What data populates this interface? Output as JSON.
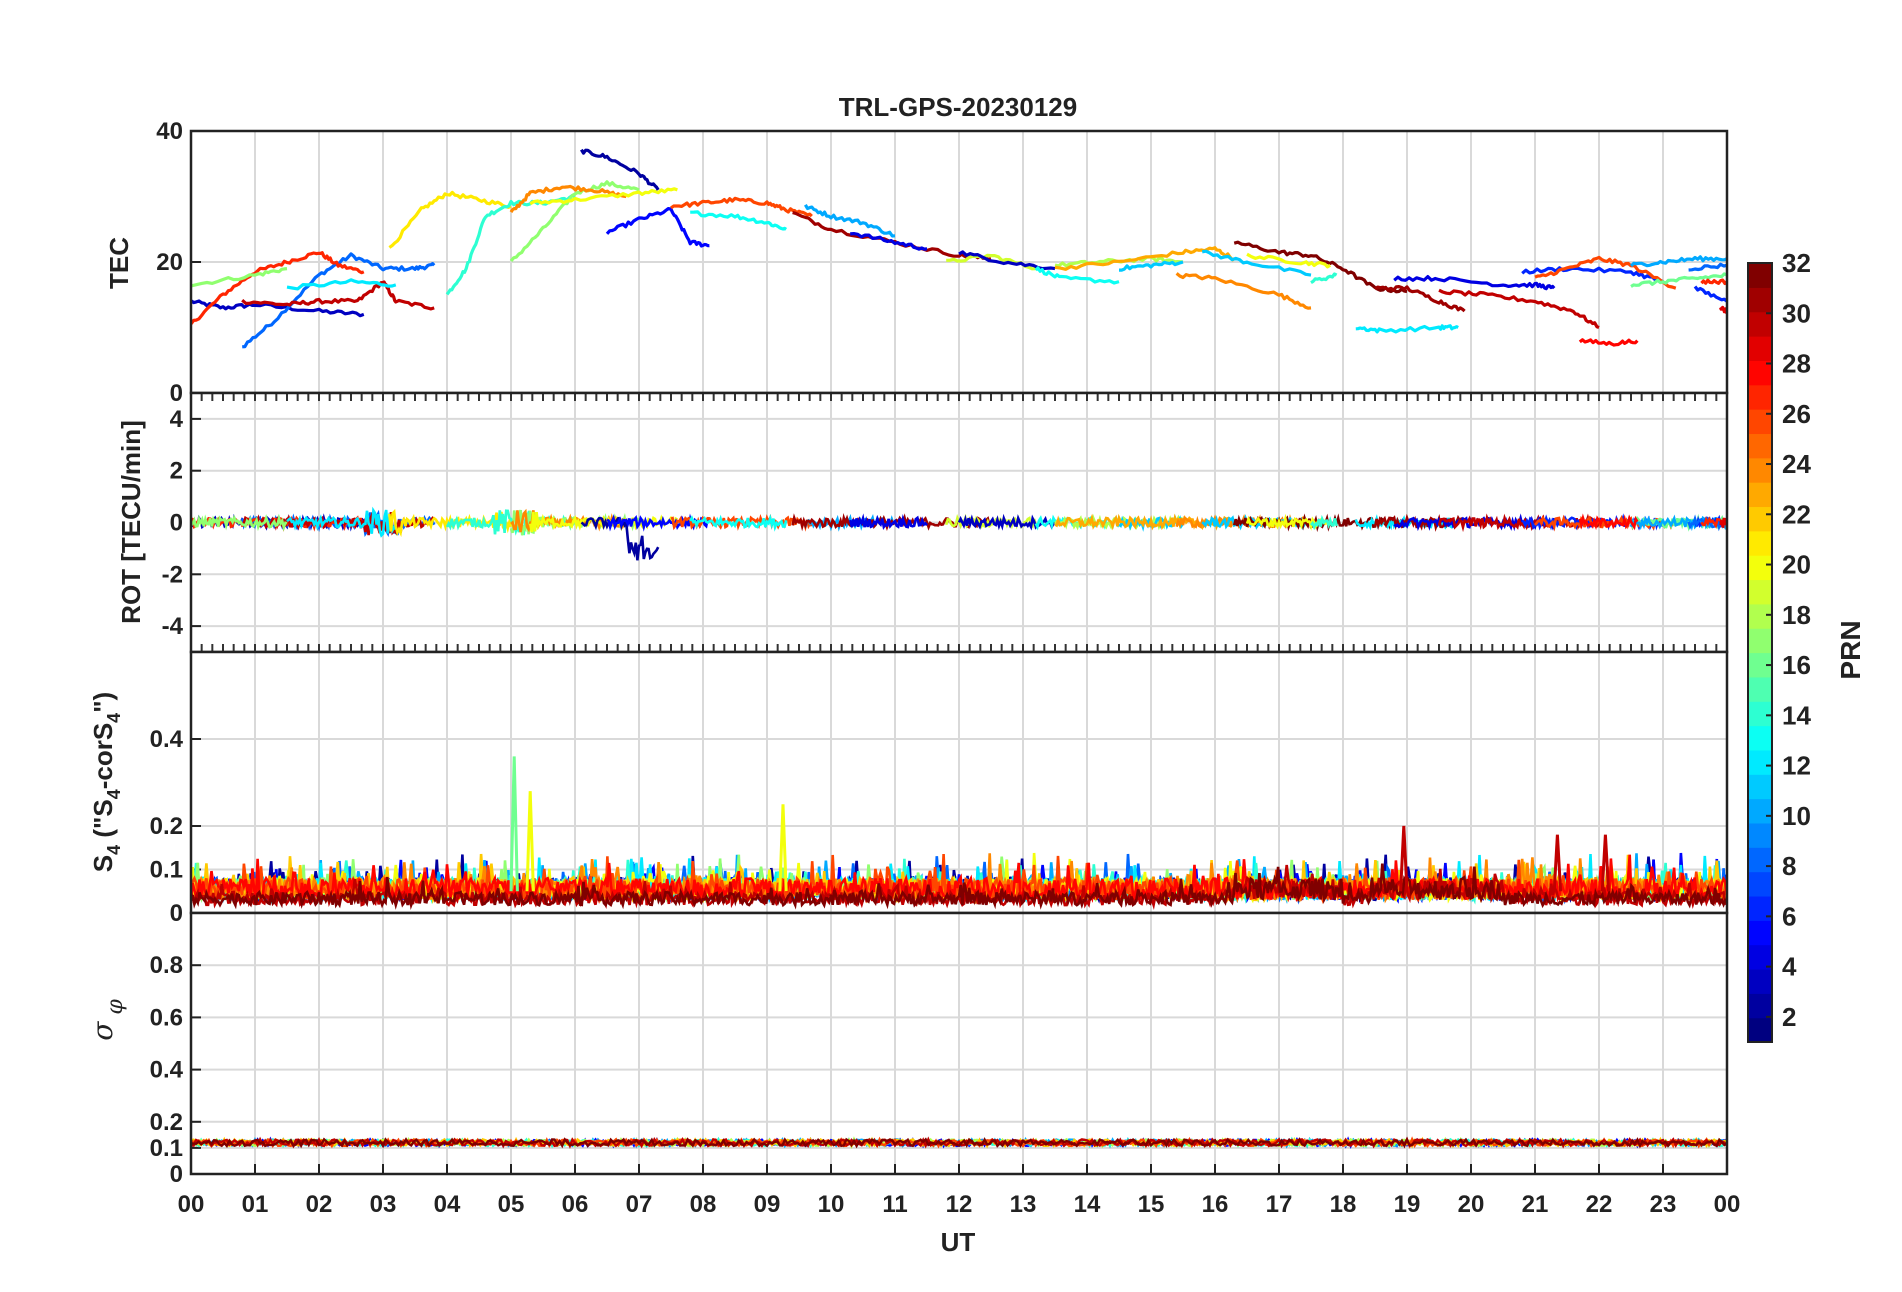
{
  "chart_data": {
    "type": "line",
    "title": "TRL-GPS-20230129",
    "xlabel": "UT",
    "x_tick_labels": [
      "00",
      "01",
      "02",
      "03",
      "04",
      "05",
      "06",
      "07",
      "08",
      "09",
      "10",
      "11",
      "12",
      "13",
      "14",
      "15",
      "16",
      "17",
      "18",
      "19",
      "20",
      "21",
      "22",
      "23",
      "00"
    ],
    "xlim_hours": [
      0,
      24
    ],
    "grid": true,
    "colorbar": {
      "label": "PRN",
      "range": [
        1,
        32
      ],
      "ticks": [
        "2",
        "4",
        "6",
        "8",
        "10",
        "12",
        "14",
        "16",
        "18",
        "20",
        "22",
        "24",
        "26",
        "28",
        "30",
        "32"
      ],
      "colormap": "jet"
    },
    "panels": [
      {
        "name": "tec",
        "ylabel": "TEC",
        "ylim": [
          0,
          40
        ],
        "y_ticks": [
          "0",
          "20",
          "40"
        ],
        "tracks": [
          {
            "prn": 3,
            "points": [
              [
                0,
                14
              ],
              [
                0.5,
                13
              ],
              [
                1,
                13.5
              ],
              [
                2,
                12.5
              ],
              [
                2.7,
                12
              ]
            ]
          },
          {
            "prn": 8,
            "points": [
              [
                0.8,
                7
              ],
              [
                1.3,
                11
              ],
              [
                2,
                18
              ],
              [
                2.5,
                21
              ],
              [
                3,
                19
              ],
              [
                3.5,
                19
              ],
              [
                3.8,
                19.5
              ]
            ]
          },
          {
            "prn": 27,
            "points": [
              [
                0,
                10.5
              ],
              [
                0.5,
                15
              ],
              [
                1,
                18.5
              ],
              [
                1.5,
                20
              ],
              [
                2,
                21.5
              ],
              [
                2.3,
                19.5
              ],
              [
                2.7,
                18.5
              ]
            ]
          },
          {
            "prn": 30,
            "points": [
              [
                0.8,
                14
              ],
              [
                1.5,
                13.5
              ],
              [
                2,
                14
              ],
              [
                2.6,
                14
              ],
              [
                3,
                17
              ],
              [
                3.2,
                14
              ],
              [
                3.8,
                13
              ]
            ]
          },
          {
            "prn": 17,
            "points": [
              [
                0,
                16.5
              ],
              [
                1,
                18
              ],
              [
                1.5,
                19
              ]
            ]
          },
          {
            "prn": 12,
            "points": [
              [
                1.5,
                16
              ],
              [
                2.5,
                17
              ],
              [
                3.2,
                16.5
              ]
            ]
          },
          {
            "prn": 21,
            "points": [
              [
                3.1,
                22
              ],
              [
                3.6,
                28
              ],
              [
                4,
                30.5
              ],
              [
                4.5,
                29.5
              ],
              [
                5,
                28.5
              ]
            ]
          },
          {
            "prn": 14,
            "points": [
              [
                4,
                15
              ],
              [
                4.3,
                19
              ],
              [
                4.6,
                27
              ],
              [
                5,
                29
              ],
              [
                5.5,
                29
              ],
              [
                6,
                30
              ]
            ]
          },
          {
            "prn": 17,
            "points": [
              [
                5,
                20
              ],
              [
                5.5,
                25
              ],
              [
                6,
                30.5
              ],
              [
                6.5,
                32
              ],
              [
                7,
                31
              ]
            ]
          },
          {
            "prn": 24,
            "points": [
              [
                5,
                27.5
              ],
              [
                5.3,
                30.5
              ],
              [
                5.8,
                31.5
              ],
              [
                6.3,
                31
              ],
              [
                6.8,
                30
              ]
            ]
          },
          {
            "prn": 20,
            "points": [
              [
                5.3,
                29
              ],
              [
                6,
                29.5
              ],
              [
                7,
                30.5
              ],
              [
                7.6,
                31
              ]
            ]
          },
          {
            "prn": 2,
            "points": [
              [
                6.1,
                37
              ],
              [
                6.5,
                36
              ],
              [
                7,
                33.5
              ],
              [
                7.3,
                31
              ]
            ]
          },
          {
            "prn": 5,
            "points": [
              [
                6.5,
                24.5
              ],
              [
                7,
                26.5
              ],
              [
                7.5,
                28
              ],
              [
                7.8,
                23
              ],
              [
                8.1,
                22.5
              ]
            ]
          },
          {
            "prn": 26,
            "points": [
              [
                7.5,
                28.5
              ],
              [
                8,
                29
              ],
              [
                8.5,
                29.5
              ],
              [
                9,
                29
              ],
              [
                9.3,
                28
              ],
              [
                9.7,
                27
              ]
            ]
          },
          {
            "prn": 13,
            "points": [
              [
                7.8,
                27.5
              ],
              [
                8.5,
                27
              ],
              [
                9,
                26
              ],
              [
                9.3,
                25
              ]
            ]
          },
          {
            "prn": 10,
            "points": [
              [
                9.6,
                28.5
              ],
              [
                10,
                27
              ],
              [
                10.5,
                26
              ],
              [
                11,
                24
              ]
            ]
          },
          {
            "prn": 31,
            "points": [
              [
                9.4,
                27.5
              ],
              [
                10,
                25
              ],
              [
                11,
                23
              ],
              [
                12,
                21
              ],
              [
                12.5,
                20.5
              ]
            ]
          },
          {
            "prn": 4,
            "points": [
              [
                10.3,
                24.5
              ],
              [
                11,
                23
              ],
              [
                11.5,
                22
              ]
            ]
          },
          {
            "prn": 19,
            "points": [
              [
                11.8,
                20
              ],
              [
                12.5,
                21
              ],
              [
                13.2,
                19
              ]
            ]
          },
          {
            "prn": 3,
            "points": [
              [
                12,
                21.5
              ],
              [
                12.7,
                20
              ],
              [
                13.5,
                19
              ]
            ]
          },
          {
            "prn": 13,
            "points": [
              [
                13.2,
                19
              ],
              [
                13.6,
                17.5
              ],
              [
                14.5,
                17
              ]
            ]
          },
          {
            "prn": 18,
            "points": [
              [
                13.5,
                19.5
              ],
              [
                14.2,
                20
              ],
              [
                15,
                20.5
              ],
              [
                15.5,
                20
              ]
            ]
          },
          {
            "prn": 11,
            "points": [
              [
                14.5,
                19
              ],
              [
                15,
                19.5
              ],
              [
                15.5,
                20
              ]
            ]
          },
          {
            "prn": 23,
            "points": [
              [
                13.5,
                19
              ],
              [
                14.5,
                20
              ],
              [
                15.5,
                21.5
              ],
              [
                16,
                22
              ],
              [
                16.3,
                20.5
              ]
            ]
          },
          {
            "prn": 24,
            "points": [
              [
                15.4,
                18
              ],
              [
                16,
                17.5
              ],
              [
                17,
                15
              ],
              [
                17.5,
                13
              ]
            ]
          },
          {
            "prn": 11,
            "points": [
              [
                15.8,
                21.5
              ],
              [
                16.5,
                20
              ],
              [
                17.5,
                18
              ]
            ]
          },
          {
            "prn": 32,
            "points": [
              [
                16.3,
                23
              ],
              [
                17,
                21.5
              ],
              [
                17.5,
                21
              ],
              [
                18,
                19
              ],
              [
                18.5,
                16
              ],
              [
                19,
                15.5
              ]
            ]
          },
          {
            "prn": 20,
            "points": [
              [
                16.5,
                21
              ],
              [
                17.3,
                20
              ],
              [
                17.8,
                19.5
              ]
            ]
          },
          {
            "prn": 14,
            "points": [
              [
                17.5,
                17
              ],
              [
                17.9,
                18
              ]
            ]
          },
          {
            "prn": 12,
            "points": [
              [
                18.2,
                10
              ],
              [
                18.6,
                9.5
              ],
              [
                19.5,
                10
              ],
              [
                19.8,
                10
              ]
            ]
          },
          {
            "prn": 31,
            "points": [
              [
                18.5,
                16
              ],
              [
                19,
                16
              ],
              [
                19.5,
                14
              ],
              [
                19.9,
                12.5
              ]
            ]
          },
          {
            "prn": 4,
            "points": [
              [
                18.8,
                17.5
              ],
              [
                19.5,
                17.5
              ],
              [
                20.5,
                16.5
              ],
              [
                21,
                16.5
              ],
              [
                21.3,
                16
              ]
            ]
          },
          {
            "prn": 30,
            "points": [
              [
                19.5,
                15.5
              ],
              [
                20.2,
                15
              ],
              [
                21,
                14
              ],
              [
                21.6,
                12.5
              ],
              [
                22,
                10
              ]
            ]
          },
          {
            "prn": 6,
            "points": [
              [
                20.8,
                18.5
              ],
              [
                21.5,
                19
              ],
              [
                22.5,
                18.5
              ],
              [
                23,
                17
              ]
            ]
          },
          {
            "prn": 26,
            "points": [
              [
                21,
                17.5
              ],
              [
                21.5,
                19
              ],
              [
                22,
                20.5
              ],
              [
                22.5,
                19.5
              ],
              [
                23.2,
                16
              ]
            ]
          },
          {
            "prn": 16,
            "points": [
              [
                22.5,
                16.5
              ],
              [
                23,
                17
              ],
              [
                23.5,
                17.5
              ],
              [
                24,
                18
              ]
            ]
          },
          {
            "prn": 10,
            "points": [
              [
                22.5,
                19.5
              ],
              [
                23,
                20
              ],
              [
                23.5,
                20.5
              ],
              [
                24,
                20.5
              ]
            ]
          },
          {
            "prn": 28,
            "points": [
              [
                21.7,
                8
              ],
              [
                22.2,
                7.5
              ],
              [
                22.6,
                8
              ]
            ]
          },
          {
            "prn": 6,
            "points": [
              [
                23.5,
                16
              ],
              [
                24,
                14
              ]
            ]
          },
          {
            "prn": 8,
            "points": [
              [
                23.4,
                19
              ],
              [
                24,
                19.5
              ]
            ]
          },
          {
            "prn": 27,
            "points": [
              [
                23.6,
                17
              ],
              [
                24,
                17
              ]
            ]
          },
          {
            "prn": 29,
            "points": [
              [
                23.9,
                13
              ],
              [
                24,
                12.5
              ]
            ]
          }
        ]
      },
      {
        "name": "rot",
        "ylabel": "ROT [TECU/min]",
        "ylim": [
          -5,
          5
        ],
        "y_ticks": [
          "-4",
          "-2",
          "0",
          "2",
          "4"
        ]
      },
      {
        "name": "s4",
        "ylabel": "S4 (\"S4-corS4\")",
        "ylim": [
          0,
          0.6
        ],
        "y_ticks": [
          "0",
          "0.1",
          "0.2",
          "0.4"
        ]
      },
      {
        "name": "sigma",
        "ylabel": "σ φ",
        "ylim": [
          0,
          1
        ],
        "y_ticks": [
          "0",
          "0.1",
          "0.2",
          "0.4",
          "0.6",
          "0.8"
        ]
      }
    ],
    "s4_spikes": [
      [
        5.05,
        0.36
      ],
      [
        5.3,
        0.28
      ],
      [
        9.25,
        0.25
      ],
      [
        18.95,
        0.2
      ],
      [
        21.35,
        0.18
      ],
      [
        22.1,
        0.18
      ]
    ]
  }
}
